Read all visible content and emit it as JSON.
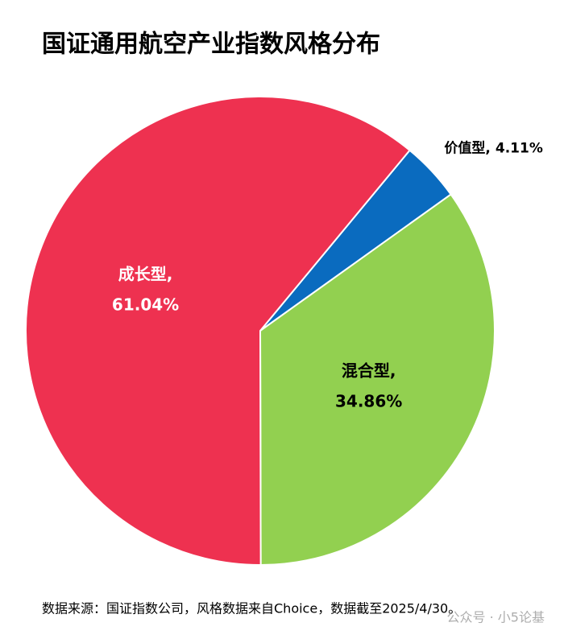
{
  "chart_data": {
    "type": "pie",
    "title": "国证通用航空产业指数风格分布",
    "categories": [
      "价值型,",
      "混合型,",
      "成长型,"
    ],
    "values": [
      4.11,
      34.86,
      61.04
    ],
    "value_labels": [
      "4.11%",
      "34.86%",
      "61.04%"
    ],
    "colors": [
      "#0a6bbf",
      "#92d050",
      "#ee3150"
    ],
    "label_colors": [
      "#000000",
      "#000000",
      "#ffffff"
    ],
    "start_angle": 39.6,
    "source": "数据来源：国证指数公司，风格数据来自Choice，数据截至2025/4/30。",
    "watermark": "公众号 · 小5论基"
  }
}
